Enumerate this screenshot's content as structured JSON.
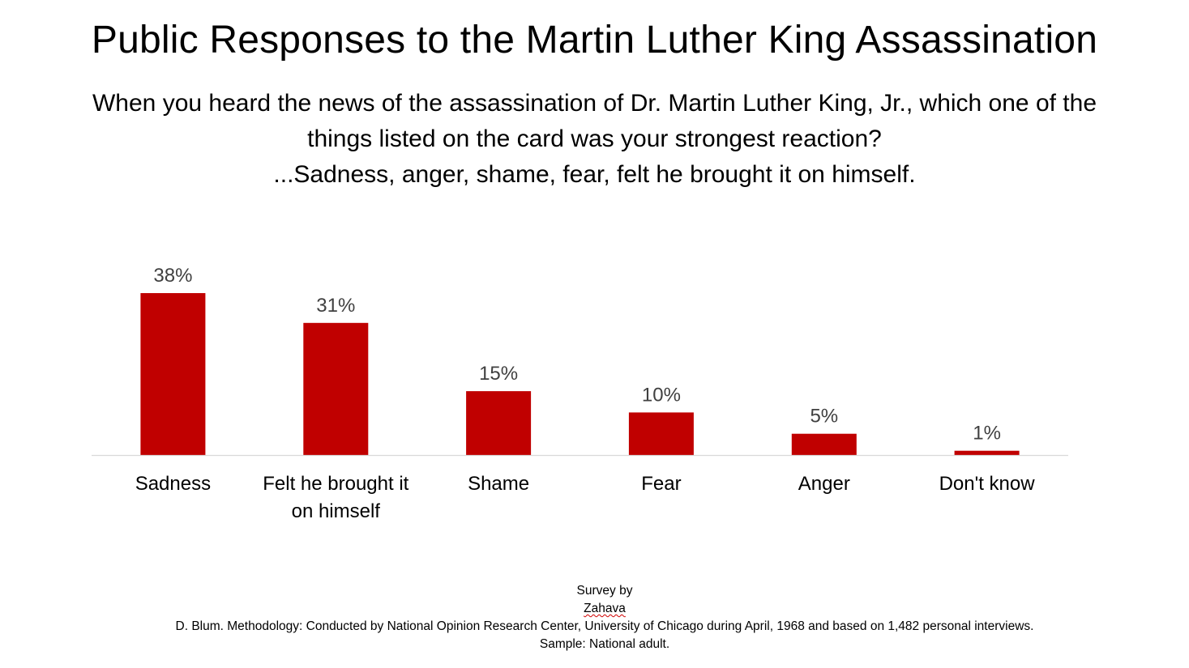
{
  "title": "Public Responses to the Martin Luther King Assassination",
  "question": {
    "line1": "When you heard the news of the assassination of Dr. Martin Luther King, Jr., which one of the",
    "line2": "things listed on the card was your strongest reaction?",
    "line3": "...Sadness, anger, shame, fear, felt he brought it on himself."
  },
  "chart_data": {
    "type": "bar",
    "categories": [
      "Sadness",
      "Felt he brought it on himself",
      "Shame",
      "Fear",
      "Anger",
      "Don't know"
    ],
    "category_lines": [
      [
        "Sadness"
      ],
      [
        "Felt he brought it",
        "on himself"
      ],
      [
        "Shame"
      ],
      [
        "Fear"
      ],
      [
        "Anger"
      ],
      [
        "Don't know"
      ]
    ],
    "values": [
      38,
      31,
      15,
      10,
      5,
      1
    ],
    "data_labels": [
      "38%",
      "31%",
      "15%",
      "10%",
      "5%",
      "1%"
    ],
    "unit": "%",
    "ylim": [
      0,
      38
    ],
    "grid": false,
    "legend": "none",
    "bar_color": "#c00000",
    "axis_color": "#d9d9d9",
    "label_color": "#404040"
  },
  "source": {
    "prefix": "Survey by ",
    "author": "Zahava",
    "rest": " D. Blum. Methodology: Conducted by National Opinion Research Center, University of Chicago during April, 1968 and based on 1,482 personal interviews.",
    "line2": "Sample: National adult."
  }
}
